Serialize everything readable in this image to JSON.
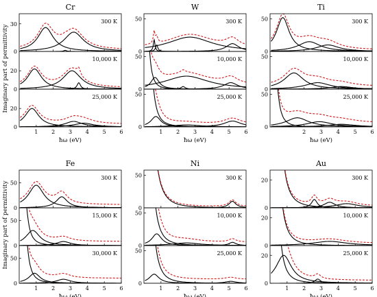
{
  "chart_data": {
    "type": "line",
    "ylabel": "Imaginary part of permittivity",
    "xlabel": "ħω (eV)",
    "xlim": [
      0,
      6
    ],
    "x_ticks": [
      1,
      2,
      3,
      4,
      5,
      6
    ],
    "legend": [],
    "colors": {
      "total": "#d0191b",
      "component": "#000000"
    },
    "panels": [
      {
        "metal": "Cr",
        "x_ticks": [
          1,
          2,
          3,
          4,
          5,
          6
        ],
        "subplots": [
          {
            "temp": "300 K",
            "ylim": [
              0,
              41
            ],
            "yticks": [
              0,
              30
            ],
            "drude": {
              "a": 0,
              "g": 0.3
            },
            "lorentz": [
              {
                "A": 26,
                "x0": 1.55,
                "w": 0.55
              },
              {
                "A": 21,
                "x0": 3.2,
                "w": 0.7
              },
              {
                "A": 1.2,
                "x0": 2.7,
                "w": 0.1
              }
            ],
            "total_offset": 1.5
          },
          {
            "temp": "10,000 K",
            "ylim": [
              0,
              41
            ],
            "yticks": [
              0,
              20
            ],
            "drude": {
              "a": 0,
              "g": 0.3
            },
            "lorentz": [
              {
                "A": 22,
                "x0": 0.9,
                "w": 0.5
              },
              {
                "A": 20,
                "x0": 3.1,
                "w": 0.65
              },
              {
                "A": 7,
                "x0": 3.5,
                "w": 0.12
              }
            ],
            "total_offset": 1.5
          },
          {
            "temp": "25,000 K",
            "ylim": [
              0,
              41
            ],
            "yticks": [
              0,
              20
            ],
            "drude": {
              "a": 0,
              "g": 0.3
            },
            "lorentz": [
              {
                "A": 20,
                "x0": 0.75,
                "w": 0.5
              },
              {
                "A": 6,
                "x0": 3.2,
                "w": 0.6
              },
              {
                "A": 4,
                "x0": 3.8,
                "w": 0.7
              }
            ],
            "total_offset": 3
          }
        ]
      },
      {
        "metal": "W",
        "x_ticks": [
          1,
          2,
          3,
          4,
          5,
          6
        ],
        "subplots": [
          {
            "temp": "300 K",
            "ylim": [
              0,
              58
            ],
            "yticks": [
              0,
              50
            ],
            "drude": {
              "a": 0,
              "g": 0.3
            },
            "lorentz": [
              {
                "A": 18,
                "x0": 0.6,
                "w": 0.06
              },
              {
                "A": 10,
                "x0": 0.75,
                "w": 0.08
              },
              {
                "A": 22,
                "x0": 2.7,
                "w": 1.6
              },
              {
                "A": 12,
                "x0": 5.2,
                "w": 0.45
              }
            ],
            "total_offset": 4
          },
          {
            "temp": "10,000 K",
            "ylim": [
              0,
              58
            ],
            "yticks": [
              0,
              50
            ],
            "drude": {
              "a": 4,
              "g": 0.3
            },
            "lorentz": [
              {
                "A": 18,
                "x0": 0.65,
                "w": 0.3
              },
              {
                "A": 20,
                "x0": 2.5,
                "w": 1.6
              },
              {
                "A": 10,
                "x0": 5.1,
                "w": 0.5
              },
              {
                "A": 4,
                "x0": 2.3,
                "w": 0.15
              }
            ],
            "total_offset": 5
          },
          {
            "temp": "25,000 K",
            "ylim": [
              0,
              58
            ],
            "yticks": [
              0,
              50
            ],
            "drude": {
              "a": 14,
              "g": 0.3
            },
            "lorentz": [
              {
                "A": 16,
                "x0": 0.7,
                "w": 0.35
              },
              {
                "A": 9,
                "x0": 5.2,
                "w": 0.6
              },
              {
                "A": 3,
                "x0": 2.5,
                "w": 1
              }
            ],
            "total_offset": 4
          }
        ]
      },
      {
        "metal": "Ti",
        "x_ticks": [
          2,
          3,
          4,
          5,
          6
        ],
        "subplots": [
          {
            "temp": "300 K",
            "ylim": [
              0,
              58
            ],
            "yticks": [
              0,
              50
            ],
            "drude": {
              "a": 0,
              "g": 0.3
            },
            "lorentz": [
              {
                "A": 52,
                "x0": 0.75,
                "w": 0.45
              },
              {
                "A": 15,
                "x0": 2.3,
                "w": 0.8
              },
              {
                "A": 10,
                "x0": 3.4,
                "w": 0.8
              }
            ],
            "total_offset": 2
          },
          {
            "temp": "10,000 K",
            "ylim": [
              0,
              58
            ],
            "yticks": [
              0,
              50
            ],
            "drude": {
              "a": 0,
              "g": 0.3
            },
            "lorentz": [
              {
                "A": 25,
                "x0": 1.4,
                "w": 0.7
              },
              {
                "A": 10,
                "x0": 2.8,
                "w": 0.9
              },
              {
                "A": 4,
                "x0": 4.2,
                "w": 0.8
              }
            ],
            "total_offset": 4
          },
          {
            "temp": "25,000 K",
            "ylim": [
              0,
              58
            ],
            "yticks": [
              0,
              50
            ],
            "drude": {
              "a": 8,
              "g": 0.3
            },
            "lorentz": [
              {
                "A": 14,
                "x0": 1.6,
                "w": 0.8
              },
              {
                "A": 8,
                "x0": 2.9,
                "w": 0.9
              },
              {
                "A": 4,
                "x0": 4.2,
                "w": 1
              }
            ],
            "total_offset": 6
          }
        ]
      },
      {
        "metal": "Fe",
        "x_ticks": [
          1,
          2,
          3,
          4,
          5,
          6
        ],
        "subplots": [
          {
            "temp": "300 K",
            "ylim": [
              0,
              75
            ],
            "yticks": [
              0,
              50
            ],
            "drude": {
              "a": 0,
              "g": 0.3
            },
            "lorentz": [
              {
                "A": 45,
                "x0": 1.0,
                "w": 0.55
              },
              {
                "A": 22,
                "x0": 2.5,
                "w": 0.4
              }
            ],
            "total_offset": 6
          },
          {
            "temp": "15,000 K",
            "ylim": [
              0,
              75
            ],
            "yticks": [
              0,
              50
            ],
            "drude": {
              "a": 10,
              "g": 0.3
            },
            "lorentz": [
              {
                "A": 30,
                "x0": 0.8,
                "w": 0.5
              },
              {
                "A": 8,
                "x0": 2.6,
                "w": 0.5
              }
            ],
            "total_offset": 8
          },
          {
            "temp": "30,000 K",
            "ylim": [
              0,
              75
            ],
            "yticks": [
              0,
              50
            ],
            "drude": {
              "a": 12,
              "g": 0.3
            },
            "lorentz": [
              {
                "A": 20,
                "x0": 0.9,
                "w": 0.4
              },
              {
                "A": 8,
                "x0": 2.6,
                "w": 0.5
              }
            ],
            "total_offset": 10
          }
        ]
      },
      {
        "metal": "Ni",
        "x_ticks": [
          1,
          2,
          3,
          4,
          5,
          6
        ],
        "subplots": [
          {
            "temp": "300 K",
            "ylim": [
              0,
              58
            ],
            "yticks": [
              0,
              50
            ],
            "drude": {
              "a": 40,
              "g": 0.6
            },
            "lorentz": [
              {
                "A": 10,
                "x0": 5.2,
                "w": 0.25
              }
            ],
            "total_offset": 2
          },
          {
            "temp": "10,000 K",
            "ylim": [
              0,
              58
            ],
            "yticks": [
              0,
              50
            ],
            "drude": {
              "a": 25,
              "g": 0.4
            },
            "lorentz": [
              {
                "A": 18,
                "x0": 0.75,
                "w": 0.35
              },
              {
                "A": 5,
                "x0": 5.2,
                "w": 0.25
              },
              {
                "A": 4,
                "x0": 2.5,
                "w": 1
              }
            ],
            "total_offset": 5
          },
          {
            "temp": "25,000 K",
            "ylim": [
              0,
              58
            ],
            "yticks": [
              0,
              50
            ],
            "drude": {
              "a": 25,
              "g": 0.4
            },
            "lorentz": [
              {
                "A": 14,
                "x0": 0.6,
                "w": 0.35
              },
              {
                "A": 3,
                "x0": 5.1,
                "w": 0.4
              }
            ],
            "total_offset": 6
          }
        ]
      },
      {
        "metal": "Au",
        "x_ticks": [
          1,
          2,
          3,
          4,
          5,
          6
        ],
        "subplots": [
          {
            "temp": "300 K",
            "ylim": [
              0,
              27
            ],
            "yticks": [
              0,
              20
            ],
            "drude": {
              "a": 20,
              "g": 0.35
            },
            "lorentz": [
              {
                "A": 6,
                "x0": 2.6,
                "w": 0.2
              },
              {
                "A": 4,
                "x0": 3.5,
                "w": 0.4
              },
              {
                "A": 3,
                "x0": 4.5,
                "w": 0.8
              }
            ],
            "total_offset": 1
          },
          {
            "temp": "10,000 K",
            "ylim": [
              0,
              27
            ],
            "yticks": [
              0,
              20
            ],
            "drude": {
              "a": 14,
              "g": 0.4
            },
            "lorentz": [
              {
                "A": 3,
                "x0": 3.5,
                "w": 1.2
              }
            ],
            "total_offset": 1.5
          },
          {
            "temp": "25,000 K",
            "ylim": [
              0,
              27
            ],
            "yticks": [
              0,
              20
            ],
            "drude": {
              "a": 10,
              "g": 0.35
            },
            "lorentz": [
              {
                "A": 20,
                "x0": 0.8,
                "w": 0.55
              },
              {
                "A": 3,
                "x0": 2.8,
                "w": 0.2
              }
            ],
            "total_offset": 2
          }
        ]
      }
    ]
  }
}
